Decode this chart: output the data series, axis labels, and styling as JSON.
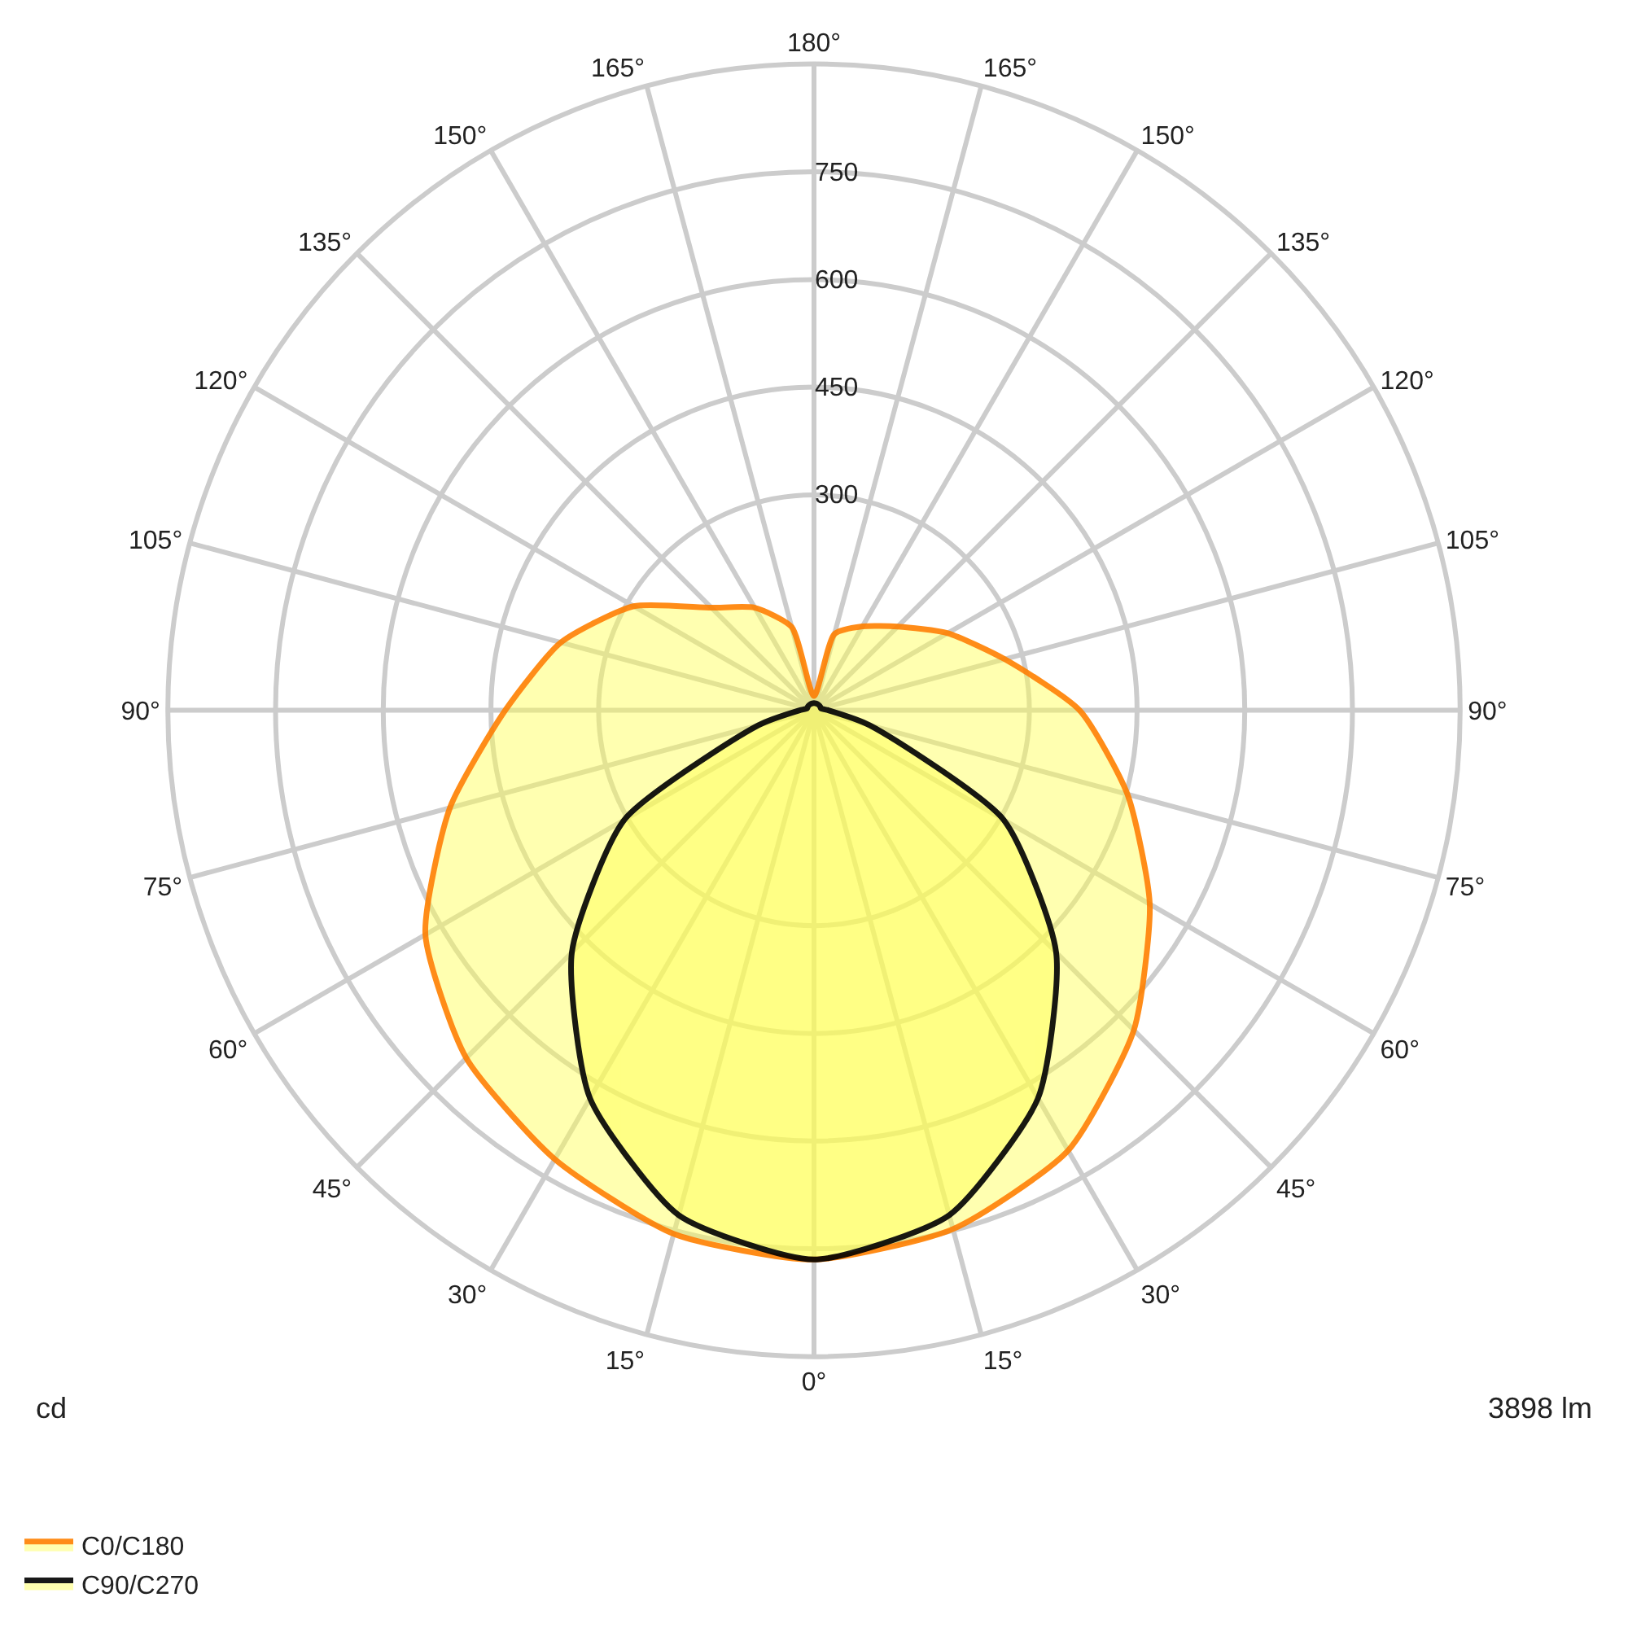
{
  "chart_data": {
    "type": "radar",
    "categories": [
      "180°",
      "165°",
      "150°",
      "135°",
      "120°",
      "105°",
      "90°",
      "75°",
      "60°",
      "45°",
      "30°",
      "15°",
      "0°",
      "15°",
      "30°",
      "45°",
      "60°",
      "75°",
      "90°",
      "105°",
      "120°",
      "135°",
      "150°",
      "165°"
    ],
    "series": [
      {
        "name": "C0/C180",
        "color": "#ff8000",
        "values": [
          20,
          110,
          135,
          165,
          215,
          275,
          370,
          452,
          540,
          630,
          708,
          748,
          765,
          755,
          722,
          685,
          625,
          525,
          430,
          365,
          290,
          202,
          165,
          120
        ]
      },
      {
        "name": "C90/C270",
        "color": "#000000",
        "values": [
          10,
          10,
          10,
          10,
          10,
          10,
          20,
          80,
          305,
          477,
          624,
          728,
          765,
          728,
          624,
          477,
          305,
          80,
          20,
          10,
          10,
          10,
          10,
          10
        ]
      }
    ],
    "ylim": [
      0,
      900
    ],
    "yticks": [
      300,
      450,
      600,
      750
    ],
    "grid": true,
    "legend": "bottom left",
    "annotations": [
      "cd",
      "3898 lm"
    ]
  }
}
